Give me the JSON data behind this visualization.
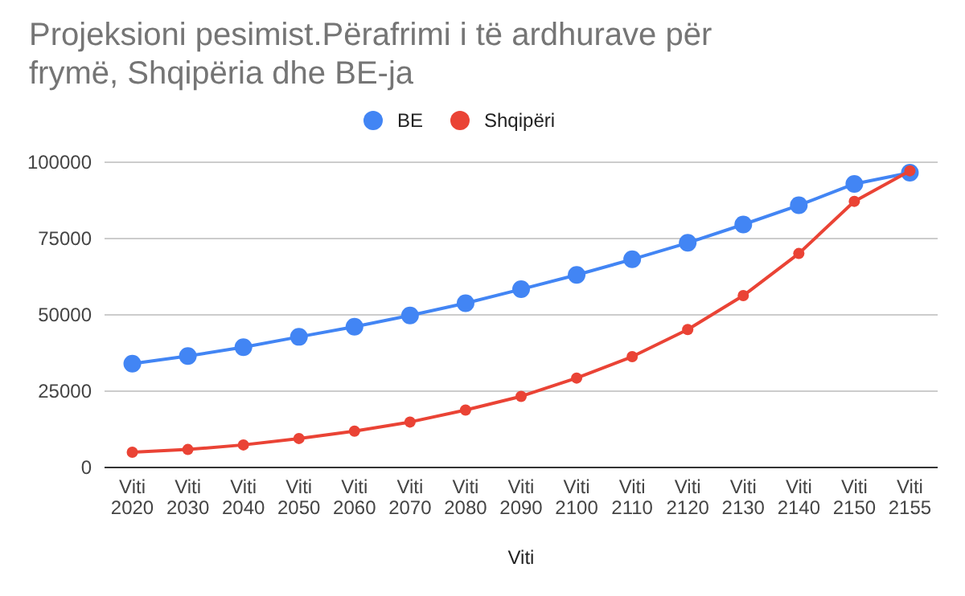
{
  "chart_data": {
    "type": "line",
    "title": "Projeksioni pesimist.Përafrimi i të ardhurave për frymë, Shqipëria dhe BE-ja",
    "xlabel": "Viti",
    "categories": [
      "Viti 2020",
      "Viti 2030",
      "Viti 2040",
      "Viti 2050",
      "Viti 2060",
      "Viti 2070",
      "Viti 2080",
      "Viti 2090",
      "Viti 2100",
      "Viti 2110",
      "Viti 2120",
      "Viti 2130",
      "Viti 2140",
      "Viti 2150",
      "Viti 2155"
    ],
    "series": [
      {
        "name": "BE",
        "color": "#4285f4",
        "values": [
          34000,
          36500,
          39400,
          42800,
          46100,
          49800,
          53800,
          58400,
          63100,
          68200,
          73600,
          79600,
          85900,
          92900,
          96600
        ]
      },
      {
        "name": "Shqipëri",
        "color": "#ea4335",
        "values": [
          5000,
          5900,
          7400,
          9500,
          11900,
          14900,
          18800,
          23300,
          29300,
          36300,
          45200,
          56300,
          70100,
          87200,
          97200
        ]
      }
    ],
    "ylim": [
      0,
      100000
    ],
    "yticks": [
      0,
      25000,
      50000,
      75000,
      100000
    ],
    "grid": "y",
    "legend": "top",
    "marker": "circle",
    "line_style": "solid"
  }
}
